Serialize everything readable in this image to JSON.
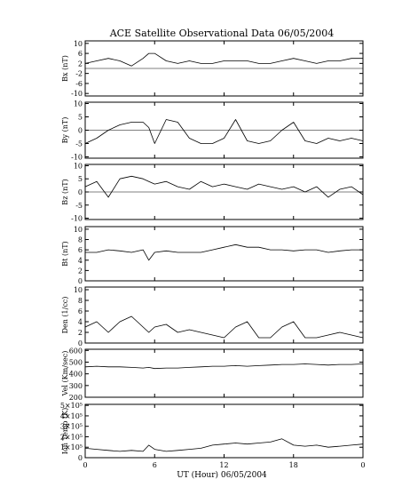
{
  "title": "ACE Satellite Observational Data   06/05/2004",
  "xlabel": "UT (Hour)   06/05/2004",
  "xticks": [
    "0",
    "6",
    "12",
    "18",
    "0"
  ],
  "chart_data": [
    {
      "type": "line",
      "name": "bx",
      "ylabel": "Bx (nT)",
      "ylim": [
        -11,
        11
      ],
      "yticks": [
        -10,
        -6,
        -2,
        2,
        6,
        10
      ],
      "yticklabels": [
        "-10",
        "-6",
        "-2",
        "2",
        "6",
        "10"
      ],
      "x": [
        0,
        1,
        2,
        3,
        4,
        5,
        5.5,
        6,
        7,
        8,
        9,
        10,
        11,
        12,
        13,
        14,
        15,
        16,
        17,
        18,
        19,
        20,
        21,
        22,
        23,
        24
      ],
      "values": [
        2,
        3,
        4,
        3,
        1,
        4,
        6,
        6,
        3,
        2,
        3,
        2,
        2,
        3,
        3,
        3,
        2,
        2,
        3,
        4,
        3,
        2,
        3,
        3,
        4,
        4
      ]
    },
    {
      "type": "line",
      "name": "by",
      "ylabel": "By (nT)",
      "ylim": [
        -10.5,
        10.5
      ],
      "yticks": [
        -10,
        -5,
        0,
        5,
        10
      ],
      "yticklabels": [
        "-10",
        "-5",
        "0",
        "5",
        "10"
      ],
      "x": [
        0,
        1,
        2,
        3,
        4,
        5,
        5.5,
        6,
        7,
        8,
        9,
        10,
        11,
        12,
        13,
        14,
        15,
        16,
        17,
        18,
        19,
        20,
        21,
        22,
        23,
        24
      ],
      "values": [
        -5,
        -3,
        0,
        2,
        3,
        3,
        1,
        -5,
        4,
        3,
        -3,
        -5,
        -5,
        -3,
        4,
        -4,
        -5,
        -4,
        0,
        3,
        -4,
        -5,
        -3,
        -4,
        -3,
        -4
      ]
    },
    {
      "type": "line",
      "name": "bz",
      "ylabel": "Bz (nT)",
      "ylim": [
        -10.5,
        10.5
      ],
      "yticks": [
        -10,
        -5,
        0,
        5,
        10
      ],
      "yticklabels": [
        "-10",
        "-5",
        "0",
        "5",
        "10"
      ],
      "x": [
        0,
        1,
        2,
        3,
        4,
        5,
        5.5,
        6,
        7,
        8,
        9,
        10,
        11,
        12,
        13,
        14,
        15,
        16,
        17,
        18,
        19,
        20,
        21,
        22,
        23,
        24
      ],
      "values": [
        2,
        4,
        -2,
        5,
        6,
        5,
        4,
        3,
        4,
        2,
        1,
        4,
        2,
        3,
        2,
        1,
        3,
        2,
        1,
        2,
        0,
        2,
        -2,
        1,
        2,
        -1
      ]
    },
    {
      "type": "line",
      "name": "bt",
      "ylabel": "Bt (nT)",
      "ylim": [
        0,
        10.5
      ],
      "yticks": [
        0,
        2,
        4,
        6,
        8,
        10
      ],
      "yticklabels": [
        "0",
        "2",
        "4",
        "6",
        "8",
        "10"
      ],
      "x": [
        0,
        1,
        2,
        3,
        4,
        5,
        5.5,
        6,
        7,
        8,
        9,
        10,
        11,
        12,
        13,
        14,
        15,
        16,
        17,
        18,
        19,
        20,
        21,
        22,
        23,
        24
      ],
      "values": [
        5.5,
        5.5,
        6,
        5.8,
        5.5,
        6,
        4,
        5.5,
        5.8,
        5.5,
        5.5,
        5.5,
        6,
        6.5,
        7,
        6.5,
        6.5,
        6,
        6,
        5.8,
        6,
        6,
        5.5,
        5.8,
        6,
        6
      ]
    },
    {
      "type": "line",
      "name": "den",
      "ylabel": "Den (1/cc)",
      "ylim": [
        0,
        10.5
      ],
      "yticks": [
        0,
        2,
        4,
        6,
        8,
        10
      ],
      "yticklabels": [
        "0",
        "2",
        "4",
        "6",
        "8",
        "10"
      ],
      "x": [
        0,
        1,
        2,
        3,
        4,
        5,
        5.5,
        6,
        7,
        8,
        9,
        10,
        11,
        12,
        13,
        14,
        15,
        16,
        17,
        18,
        19,
        20,
        21,
        22,
        23,
        24
      ],
      "values": [
        3,
        4,
        2,
        4,
        5,
        3,
        2,
        3,
        3.5,
        2,
        2.5,
        2,
        1.5,
        1,
        3,
        4,
        1,
        1,
        3,
        4,
        1,
        1,
        1.5,
        2,
        1.5,
        1
      ]
    },
    {
      "type": "line",
      "name": "vel",
      "ylabel": "Vel (Km/sec)",
      "ylim": [
        200,
        610
      ],
      "yticks": [
        200,
        300,
        400,
        500,
        600
      ],
      "yticklabels": [
        "200",
        "300",
        "400",
        "500",
        "600"
      ],
      "x": [
        0,
        1,
        2,
        3,
        4,
        5,
        5.5,
        6,
        7,
        8,
        9,
        10,
        11,
        12,
        13,
        14,
        15,
        16,
        17,
        18,
        19,
        20,
        21,
        22,
        23,
        24
      ],
      "values": [
        460,
        465,
        460,
        460,
        455,
        450,
        455,
        445,
        450,
        450,
        455,
        460,
        465,
        465,
        470,
        465,
        470,
        475,
        480,
        480,
        485,
        480,
        475,
        480,
        480,
        485
      ]
    },
    {
      "type": "line",
      "name": "temp",
      "ylabel": "Ion Temp (K)",
      "ylim": [
        0,
        510000
      ],
      "yticks": [
        0,
        100000,
        200000,
        300000,
        400000,
        500000
      ],
      "yticklabels": [
        "0",
        "1×10⁵",
        "2×10⁵",
        "3×10⁵",
        "4×10⁵",
        "5×10⁵"
      ],
      "x": [
        0,
        1,
        2,
        3,
        4,
        5,
        5.5,
        6,
        7,
        8,
        9,
        10,
        11,
        12,
        13,
        14,
        15,
        16,
        17,
        18,
        19,
        20,
        21,
        22,
        23,
        24
      ],
      "values": [
        90000,
        80000,
        70000,
        60000,
        70000,
        60000,
        120000,
        80000,
        60000,
        70000,
        80000,
        90000,
        120000,
        130000,
        140000,
        130000,
        140000,
        150000,
        180000,
        120000,
        110000,
        120000,
        100000,
        110000,
        120000,
        130000
      ]
    }
  ]
}
